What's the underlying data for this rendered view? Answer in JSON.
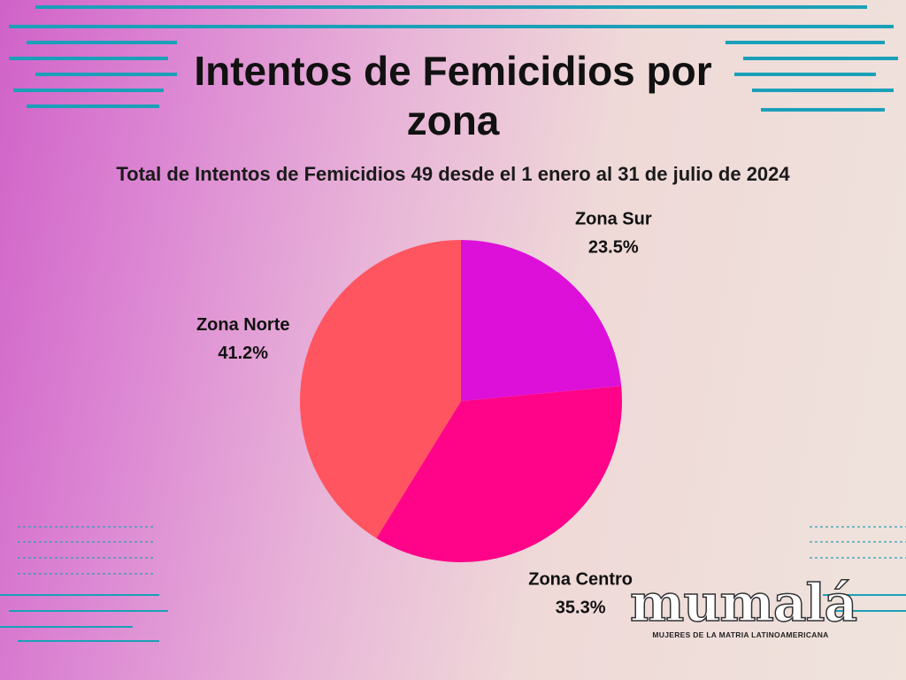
{
  "chart_data": {
    "type": "pie",
    "title": "Intentos de Femicidios por zona",
    "subtitle": "Total de Intentos de Femicidios 49 desde el 1 enero al 31  de julio de 2024",
    "categories": [
      "Zona Sur",
      "Zona Centro",
      "Zona Norte"
    ],
    "values": [
      23.5,
      35.3,
      41.2
    ],
    "value_labels": [
      "23.5%",
      "35.3%",
      "41.2%"
    ],
    "colors": [
      "#dd10d9",
      "#ff0488",
      "#ff5561"
    ]
  },
  "logo": {
    "name": "mumalá",
    "tagline": "MUJERES DE LA MATRIA LATINOAMERICANA"
  }
}
